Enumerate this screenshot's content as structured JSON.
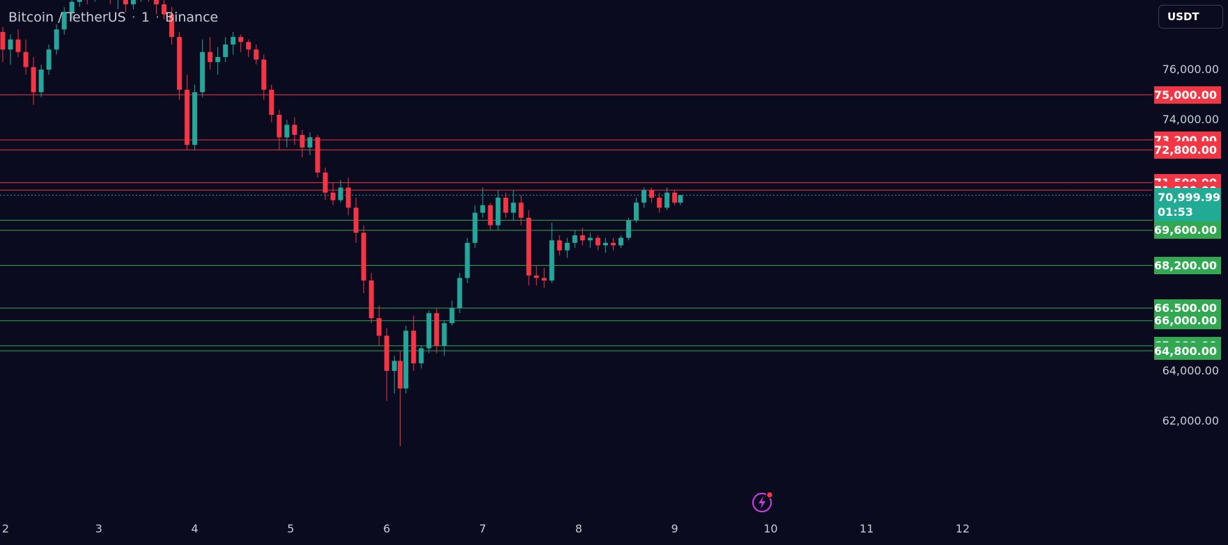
{
  "title": {
    "pair": "Bitcoin / TetherUS",
    "interval": "1",
    "exchange": "Binance"
  },
  "currency": "USDT",
  "price_axis": [
    "76,000.00",
    "74,000.00",
    "64,000.00",
    "62,000.00"
  ],
  "price_axis_values": [
    76000,
    74000,
    64000,
    62000
  ],
  "current_price": {
    "value": "70,999.99",
    "countdown": "01:53",
    "color": "#22ab94"
  },
  "resistance_levels": [
    {
      "label": "75,000.00",
      "value": 75000
    },
    {
      "label": "73,200.00",
      "value": 73200
    },
    {
      "label": "72,800.00",
      "value": 72800
    },
    {
      "label": "71,500.00",
      "value": 71500
    },
    {
      "label": "71,200.00",
      "value": 71200
    }
  ],
  "support_levels": [
    {
      "label": "70,000.00",
      "value": 70000
    },
    {
      "label": "69,600.00",
      "value": 69600
    },
    {
      "label": "68,200.00",
      "value": 68200
    },
    {
      "label": "66,500.00",
      "value": 66500
    },
    {
      "label": "66,000.00",
      "value": 66000
    },
    {
      "label": "65,000.00",
      "value": 65000
    },
    {
      "label": "64,800.00",
      "value": 64800
    }
  ],
  "colors": {
    "background": "#0b0b1f",
    "up": "#26a69a",
    "down": "#f23645",
    "support": "#32a852",
    "resistance": "#f23645"
  },
  "icons": {
    "alert": "lightning-alert-icon"
  },
  "chart_data": {
    "type": "candlestick",
    "x_ticks": [
      {
        "label": "2",
        "day": 2
      },
      {
        "label": "3",
        "day": 3
      },
      {
        "label": "4",
        "day": 4
      },
      {
        "label": "5",
        "day": 5
      },
      {
        "label": "6",
        "day": 6
      },
      {
        "label": "7",
        "day": 7
      },
      {
        "label": "8",
        "day": 8
      },
      {
        "label": "9",
        "day": 9
      },
      {
        "label": "10",
        "day": 10
      },
      {
        "label": "11",
        "day": 11
      },
      {
        "label": "12",
        "day": 12
      }
    ],
    "candles": [
      [
        2.0,
        77500,
        77700,
        76300,
        76800
      ],
      [
        2.08,
        76800,
        77400,
        76200,
        77200
      ],
      [
        2.16,
        77200,
        77600,
        76500,
        76700
      ],
      [
        2.24,
        76700,
        77200,
        75800,
        76100
      ],
      [
        2.32,
        76100,
        76500,
        74600,
        75100
      ],
      [
        2.4,
        75100,
        76200,
        74900,
        76000
      ],
      [
        2.48,
        76000,
        77000,
        75800,
        76800
      ],
      [
        2.56,
        76800,
        77800,
        76600,
        77600
      ],
      [
        2.64,
        77600,
        78500,
        77400,
        78300
      ],
      [
        2.72,
        78300,
        79000,
        78000,
        78700
      ],
      [
        2.8,
        78700,
        79500,
        78500,
        79200
      ],
      [
        2.88,
        79200,
        79400,
        78600,
        78900
      ],
      [
        2.96,
        78900,
        79600,
        78700,
        79300
      ],
      [
        3.04,
        79300,
        79800,
        79000,
        79400
      ],
      [
        3.12,
        79400,
        79500,
        78600,
        78800
      ],
      [
        3.2,
        78800,
        79300,
        78400,
        79000
      ],
      [
        3.28,
        79000,
        79300,
        78300,
        78600
      ],
      [
        3.36,
        78600,
        79100,
        78400,
        78900
      ],
      [
        3.44,
        78900,
        79500,
        78700,
        79300
      ],
      [
        3.52,
        79300,
        79500,
        78700,
        78900
      ],
      [
        3.6,
        78900,
        79200,
        78200,
        78600
      ],
      [
        3.68,
        78600,
        79000,
        78000,
        78200
      ],
      [
        3.76,
        78200,
        78500,
        77000,
        77300
      ],
      [
        3.84,
        77300,
        77500,
        74800,
        75200
      ],
      [
        3.92,
        75200,
        75800,
        72800,
        73000
      ],
      [
        4.0,
        73000,
        75400,
        72800,
        75100
      ],
      [
        4.08,
        75100,
        77200,
        74900,
        76700
      ],
      [
        4.16,
        76700,
        77300,
        76000,
        76300
      ],
      [
        4.24,
        76300,
        76900,
        75800,
        76500
      ],
      [
        4.32,
        76500,
        77300,
        76300,
        77000
      ],
      [
        4.4,
        77000,
        77500,
        76600,
        77300
      ],
      [
        4.48,
        77300,
        77400,
        76700,
        77100
      ],
      [
        4.56,
        77100,
        77200,
        76500,
        76800
      ],
      [
        4.64,
        76800,
        77000,
        76200,
        76400
      ],
      [
        4.72,
        76400,
        76600,
        74800,
        75200
      ],
      [
        4.8,
        75200,
        75400,
        73900,
        74200
      ],
      [
        4.88,
        74200,
        74400,
        72800,
        73300
      ],
      [
        4.96,
        73300,
        74000,
        72900,
        73800
      ],
      [
        5.04,
        73800,
        74100,
        73000,
        73400
      ],
      [
        5.12,
        73400,
        73600,
        72500,
        72900
      ],
      [
        5.2,
        72900,
        73500,
        72600,
        73300
      ],
      [
        5.28,
        73300,
        73400,
        71700,
        71900
      ],
      [
        5.36,
        71900,
        72100,
        70800,
        71100
      ],
      [
        5.44,
        71100,
        71500,
        70600,
        70800
      ],
      [
        5.52,
        70800,
        71600,
        70700,
        71300
      ],
      [
        5.6,
        71300,
        71700,
        70200,
        70500
      ],
      [
        5.68,
        70500,
        70900,
        69100,
        69500
      ],
      [
        5.76,
        69500,
        69800,
        67100,
        67600
      ],
      [
        5.84,
        67600,
        67900,
        65900,
        66100
      ],
      [
        5.92,
        66100,
        66600,
        65000,
        65400
      ],
      [
        6.0,
        65400,
        65700,
        62800,
        64000
      ],
      [
        6.08,
        64000,
        64600,
        63100,
        64400
      ],
      [
        6.14,
        64400,
        64800,
        61000,
        63300
      ],
      [
        6.2,
        63300,
        65800,
        63100,
        65600
      ],
      [
        6.28,
        65600,
        66200,
        64000,
        64300
      ],
      [
        6.36,
        64300,
        65000,
        64100,
        64900
      ],
      [
        6.44,
        64900,
        66400,
        64700,
        66300
      ],
      [
        6.52,
        66300,
        66500,
        64700,
        65000
      ],
      [
        6.6,
        65000,
        66000,
        64600,
        65900
      ],
      [
        6.68,
        65900,
        66800,
        65800,
        66500
      ],
      [
        6.76,
        66500,
        67900,
        66300,
        67700
      ],
      [
        6.84,
        67700,
        69300,
        67500,
        69100
      ],
      [
        6.92,
        69100,
        70600,
        68900,
        70300
      ],
      [
        7.0,
        70300,
        71300,
        70100,
        70600
      ],
      [
        7.08,
        70600,
        70700,
        69600,
        69800
      ],
      [
        7.16,
        69800,
        71200,
        69600,
        70900
      ],
      [
        7.24,
        70900,
        71100,
        70100,
        70300
      ],
      [
        7.32,
        70300,
        71200,
        70000,
        70700
      ],
      [
        7.4,
        70700,
        71000,
        69800,
        70100
      ],
      [
        7.48,
        70100,
        70400,
        67400,
        67800
      ],
      [
        7.56,
        67800,
        68200,
        67400,
        67700
      ],
      [
        7.64,
        67700,
        68100,
        67300,
        67600
      ],
      [
        7.72,
        67600,
        69900,
        67500,
        69200
      ],
      [
        7.8,
        69200,
        69400,
        68600,
        68800
      ],
      [
        7.88,
        68800,
        69300,
        68500,
        69100
      ],
      [
        7.96,
        69100,
        69600,
        68900,
        69400
      ],
      [
        8.04,
        69400,
        69700,
        69000,
        69200
      ],
      [
        8.12,
        69200,
        69500,
        68900,
        69300
      ],
      [
        8.2,
        69300,
        69400,
        68800,
        69000
      ],
      [
        8.28,
        69000,
        69300,
        68700,
        69100
      ],
      [
        8.36,
        69100,
        69300,
        68800,
        69000
      ],
      [
        8.44,
        69000,
        69400,
        68900,
        69300
      ],
      [
        8.52,
        69300,
        70100,
        69200,
        70000
      ],
      [
        8.6,
        70000,
        70900,
        69900,
        70700
      ],
      [
        8.68,
        70700,
        71300,
        70500,
        71200
      ],
      [
        8.76,
        71200,
        71300,
        70700,
        70900
      ],
      [
        8.84,
        70900,
        71100,
        70300,
        70500
      ],
      [
        8.92,
        70500,
        71300,
        70400,
        71100
      ],
      [
        9.0,
        71100,
        71200,
        70600,
        70700
      ],
      [
        9.06,
        70700,
        71000,
        70600,
        71000
      ]
    ],
    "ylim": [
      61000,
      79800
    ],
    "xlim": [
      1.97,
      12.95
    ]
  }
}
